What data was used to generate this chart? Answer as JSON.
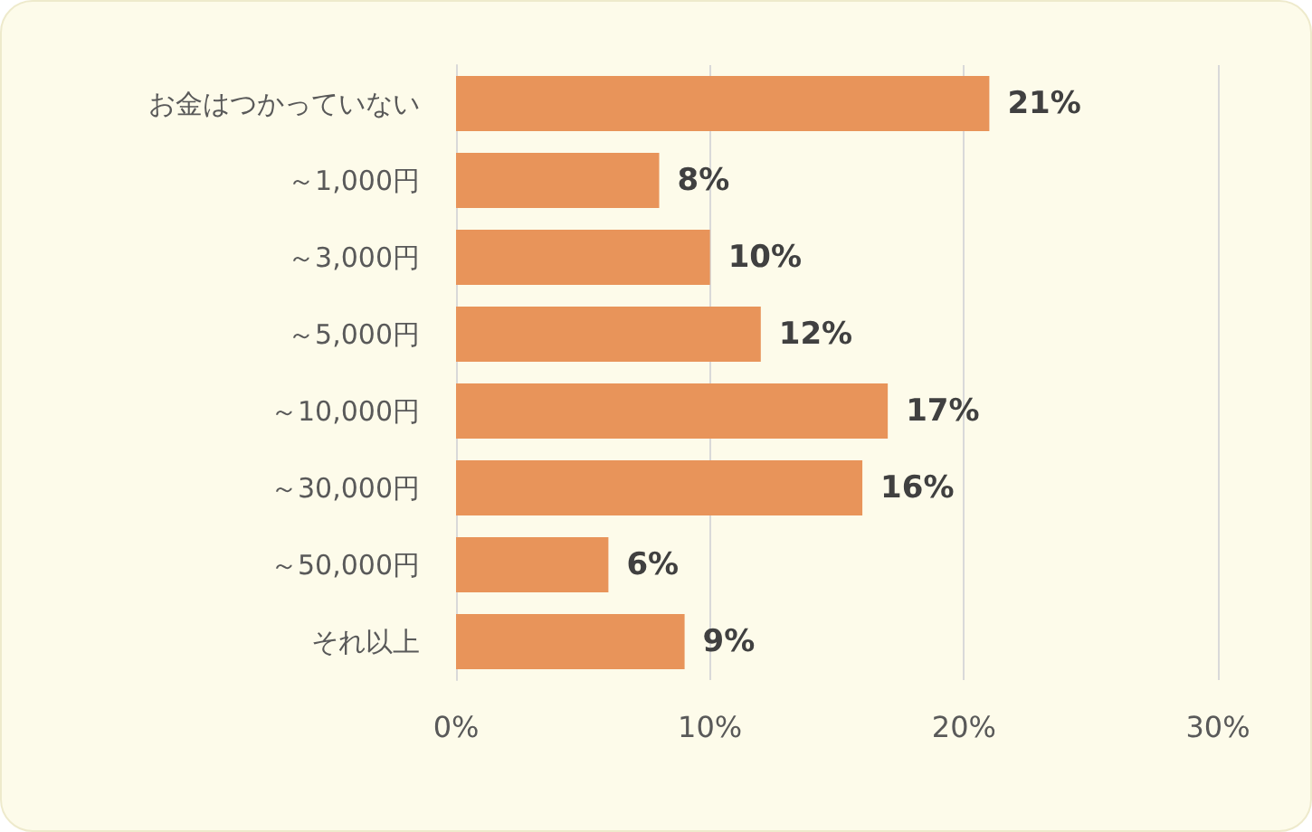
{
  "chart_data": {
    "type": "bar",
    "orientation": "horizontal",
    "categories": [
      "お金はつかっていない",
      "～1,000円",
      "～3,000円",
      "～5,000円",
      "～10,000円",
      "～30,000円",
      "～50,000円",
      "それ以上"
    ],
    "values": [
      21,
      8,
      10,
      12,
      17,
      16,
      6,
      9
    ],
    "value_labels": [
      "21%",
      "8%",
      "10%",
      "12%",
      "17%",
      "16%",
      "6%",
      "9%"
    ],
    "color": "#e8945a",
    "xlim": [
      0,
      30
    ],
    "xticks": [
      {
        "value": 0,
        "label": "0%"
      },
      {
        "value": 10,
        "label": "10%"
      },
      {
        "value": 20,
        "label": "20%"
      },
      {
        "value": 30,
        "label": "30%"
      }
    ],
    "grid": "x"
  }
}
